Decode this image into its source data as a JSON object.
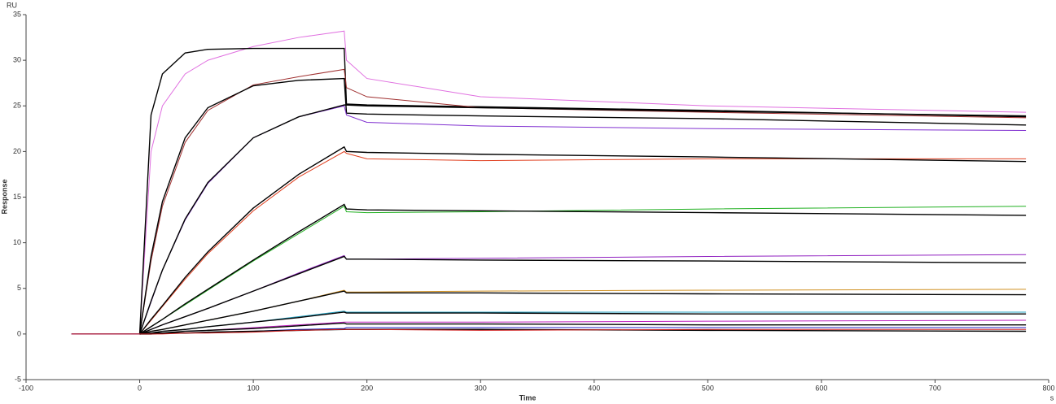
{
  "chart_data": {
    "type": "line",
    "y_unit_label": "RU",
    "ylabel": "Response",
    "xlabel": "Time",
    "x_unit_label": "s",
    "xlim": [
      -100,
      800
    ],
    "xticks": [
      -100,
      0,
      100,
      200,
      300,
      400,
      500,
      600,
      700,
      800
    ],
    "ylim": [
      -5,
      35
    ],
    "yticks": [
      -5,
      0,
      5,
      10,
      15,
      20,
      25,
      30,
      35
    ],
    "x": [
      -60,
      0,
      10,
      20,
      40,
      60,
      100,
      140,
      180,
      182,
      200,
      300,
      500,
      780
    ],
    "series": [
      {
        "color": "#e070e0",
        "values": [
          0,
          0,
          20,
          25,
          28.5,
          30,
          31.5,
          32.5,
          33.2,
          30,
          28,
          26,
          25,
          24.3
        ]
      },
      {
        "color": "#000000",
        "values": [
          null,
          0,
          24,
          28.5,
          30.8,
          31.2,
          31.3,
          31.3,
          31.3,
          25.2,
          25.1,
          24.9,
          24.5,
          23.8
        ]
      },
      {
        "color": "#a03030",
        "values": [
          0,
          0,
          8,
          14,
          21,
          24.5,
          27.3,
          28.2,
          29,
          27,
          26,
          24.8,
          24.3,
          23.7
        ]
      },
      {
        "color": "#000000",
        "values": [
          null,
          0,
          8.5,
          14.5,
          21.5,
          24.8,
          27.2,
          27.8,
          28,
          24.2,
          24.1,
          23.9,
          23.6,
          22.9
        ]
      },
      {
        "color": "#8030d0",
        "values": [
          0,
          0,
          3.5,
          7,
          12.5,
          16.5,
          21.5,
          23.8,
          25,
          24,
          23.2,
          22.8,
          22.5,
          22.3
        ]
      },
      {
        "color": "#000000",
        "values": [
          null,
          0,
          3.6,
          7,
          12.6,
          16.6,
          21.5,
          23.8,
          25.1,
          25.1,
          25,
          24.8,
          24.4,
          23.9
        ]
      },
      {
        "color": "#e04020",
        "values": [
          0,
          0,
          1.5,
          3,
          6,
          8.8,
          13.5,
          17.2,
          20,
          19.8,
          19.2,
          19,
          19.2,
          19.2
        ]
      },
      {
        "color": "#000000",
        "values": [
          null,
          0,
          1.6,
          3.1,
          6.2,
          9,
          13.8,
          17.5,
          20.5,
          20,
          19.9,
          19.7,
          19.4,
          18.9
        ]
      },
      {
        "color": "#20b020",
        "values": [
          0,
          0,
          0.8,
          1.6,
          3.2,
          4.8,
          8,
          11,
          14,
          13.4,
          13.3,
          13.4,
          13.7,
          14
        ]
      },
      {
        "color": "#000000",
        "values": [
          null,
          0,
          0.8,
          1.6,
          3.3,
          4.9,
          8.1,
          11.2,
          14.2,
          13.7,
          13.6,
          13.5,
          13.3,
          13
        ]
      },
      {
        "color": "#9020c0",
        "values": [
          0,
          0,
          0.5,
          1,
          1.9,
          2.8,
          4.7,
          6.7,
          8.6,
          8.2,
          8.2,
          8.3,
          8.5,
          8.7
        ]
      },
      {
        "color": "#000000",
        "values": [
          null,
          0,
          0.5,
          1,
          1.9,
          2.8,
          4.7,
          6.6,
          8.5,
          8.2,
          8.2,
          8.1,
          8,
          7.8
        ]
      },
      {
        "color": "#d09020",
        "values": [
          0,
          0,
          0.3,
          0.5,
          1,
          1.5,
          2.5,
          3.6,
          4.8,
          4.6,
          4.6,
          4.7,
          4.8,
          4.9
        ]
      },
      {
        "color": "#000000",
        "values": [
          null,
          0,
          0.3,
          0.5,
          1,
          1.5,
          2.5,
          3.6,
          4.7,
          4.5,
          4.5,
          4.5,
          4.4,
          4.3
        ]
      },
      {
        "color": "#20a0c0",
        "values": [
          0,
          0,
          0.1,
          0.3,
          0.5,
          0.8,
          1.3,
          1.9,
          2.5,
          2.4,
          2.4,
          2.4,
          2.4,
          2.4
        ]
      },
      {
        "color": "#000000",
        "values": [
          null,
          0,
          0.1,
          0.3,
          0.5,
          0.8,
          1.3,
          1.8,
          2.4,
          2.3,
          2.3,
          2.3,
          2.2,
          2.2
        ]
      },
      {
        "color": "#c020c0",
        "values": [
          0,
          0,
          0.1,
          0.1,
          0.3,
          0.4,
          0.7,
          1,
          1.3,
          1.3,
          1.3,
          1.3,
          1.4,
          1.5
        ]
      },
      {
        "color": "#000000",
        "values": [
          null,
          0,
          0.1,
          0.1,
          0.3,
          0.4,
          0.6,
          0.9,
          1.2,
          1.1,
          1.1,
          1.1,
          1,
          1
        ]
      },
      {
        "color": "#2020c0",
        "values": [
          0,
          0,
          0,
          0.1,
          0.1,
          0.2,
          0.3,
          0.5,
          0.6,
          0.7,
          0.7,
          0.7,
          0.7,
          0.7
        ]
      },
      {
        "color": "#000000",
        "values": [
          null,
          0,
          0,
          0.1,
          0.1,
          0.2,
          0.3,
          0.4,
          0.5,
          0.5,
          0.5,
          0.5,
          0.4,
          0.3
        ]
      },
      {
        "color": "#d02020",
        "values": [
          0,
          0,
          0,
          0,
          0.1,
          0.1,
          0.2,
          0.4,
          0.5,
          0.5,
          0.5,
          0.4,
          0.5,
          0.5
        ]
      }
    ]
  }
}
